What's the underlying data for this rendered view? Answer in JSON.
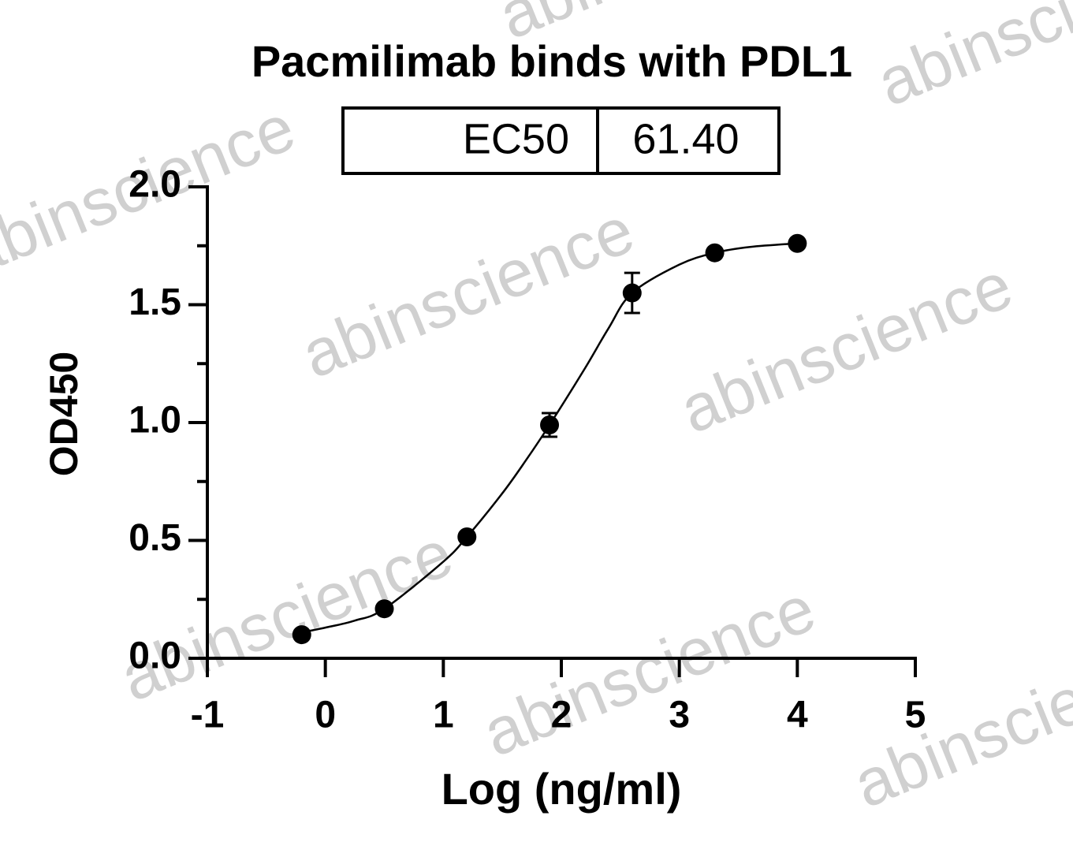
{
  "chart_data": {
    "type": "scatter",
    "title": "Pacmilimab binds with PDL1",
    "x_label": "Log (ng/ml)",
    "y_label": "OD450",
    "watermark": "abinscience",
    "legend_table": {
      "rows": [
        [
          "EC50",
          "61.40"
        ]
      ]
    },
    "x": [
      -0.2,
      0.5,
      1.2,
      1.9,
      2.6,
      3.3,
      4.0
    ],
    "series": [
      {
        "color": "#000000",
        "values": [
          0.1,
          0.21,
          0.515,
          0.99,
          1.55,
          1.72,
          1.76
        ],
        "errors": [
          0,
          0,
          0,
          0.05,
          0.085,
          0,
          0
        ]
      }
    ],
    "fit": {
      "x": [
        -0.2,
        0,
        0.25,
        0.5,
        1.0,
        1.2,
        1.5,
        1.7,
        1.9,
        2.2,
        2.4,
        2.6,
        3.0,
        3.3,
        3.6,
        4.0
      ],
      "values": [
        0.11,
        0.13,
        0.16,
        0.21,
        0.41,
        0.515,
        0.7,
        0.84,
        0.99,
        1.23,
        1.4,
        1.55,
        1.67,
        1.72,
        1.745,
        1.76
      ]
    },
    "xlim": [
      -1,
      5
    ],
    "xticks": [
      -1,
      0,
      1,
      2,
      3,
      4,
      5
    ],
    "ylim": [
      0,
      2
    ],
    "yticks": [
      {
        "value": 0,
        "label": "0.0"
      },
      0.5,
      {
        "value": 1,
        "label": "1.0"
      },
      1.5,
      {
        "value": 2,
        "label": "2.0"
      }
    ],
    "yminorticks": [
      0.25,
      0.75,
      1.25,
      1.75
    ]
  }
}
